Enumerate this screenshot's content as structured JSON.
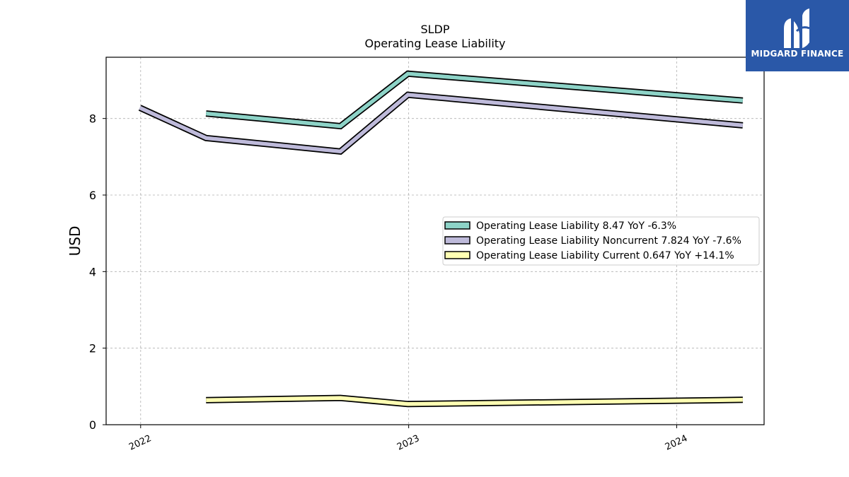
{
  "chart_data": {
    "type": "line",
    "title": "SLDP",
    "subtitle": "Operating Lease Liability",
    "ylabel": "USD",
    "xlabel": "",
    "ylim": [
      0,
      9.6
    ],
    "xlim": [
      "2021-11-15",
      "2024-04-29"
    ],
    "yticks": [
      0,
      2,
      4,
      6,
      8
    ],
    "xticks": [
      {
        "date": "2022-01-01",
        "label": "2022"
      },
      {
        "date": "2023-01-01",
        "label": "2023"
      },
      {
        "date": "2024-01-01",
        "label": "2024"
      }
    ],
    "grid": true,
    "legend_position": "center-right",
    "series": [
      {
        "name": "Operating Lease Liability",
        "legend_label": "Operating Lease Liability  8.47 YoY -6.3%",
        "color": "#8dd3c7",
        "x": [
          "2022-03-31",
          "2022-09-30",
          "2022-12-31",
          "2024-03-31"
        ],
        "values": [
          8.13,
          7.8,
          9.17,
          8.47
        ]
      },
      {
        "name": "Operating Lease Liability Noncurrent",
        "legend_label": "Operating Lease Liability Noncurrent  7.824 YoY -7.6%",
        "color": "#bebada",
        "x": [
          "2021-12-31",
          "2022-03-31",
          "2022-09-30",
          "2022-12-31",
          "2024-03-31"
        ],
        "values": [
          8.28,
          7.49,
          7.14,
          8.62,
          7.82
        ]
      },
      {
        "name": "Operating Lease Liability Current",
        "legend_label": "Operating Lease Liability Current  0.647 YoY +14.1%",
        "color": "#ffffb3",
        "x": [
          "2022-03-31",
          "2022-09-30",
          "2022-12-31",
          "2024-03-31"
        ],
        "values": [
          0.64,
          0.7,
          0.54,
          0.65
        ]
      }
    ]
  },
  "logo": {
    "text": "MIDGARD FINANCE",
    "background": "#2a58a8"
  }
}
